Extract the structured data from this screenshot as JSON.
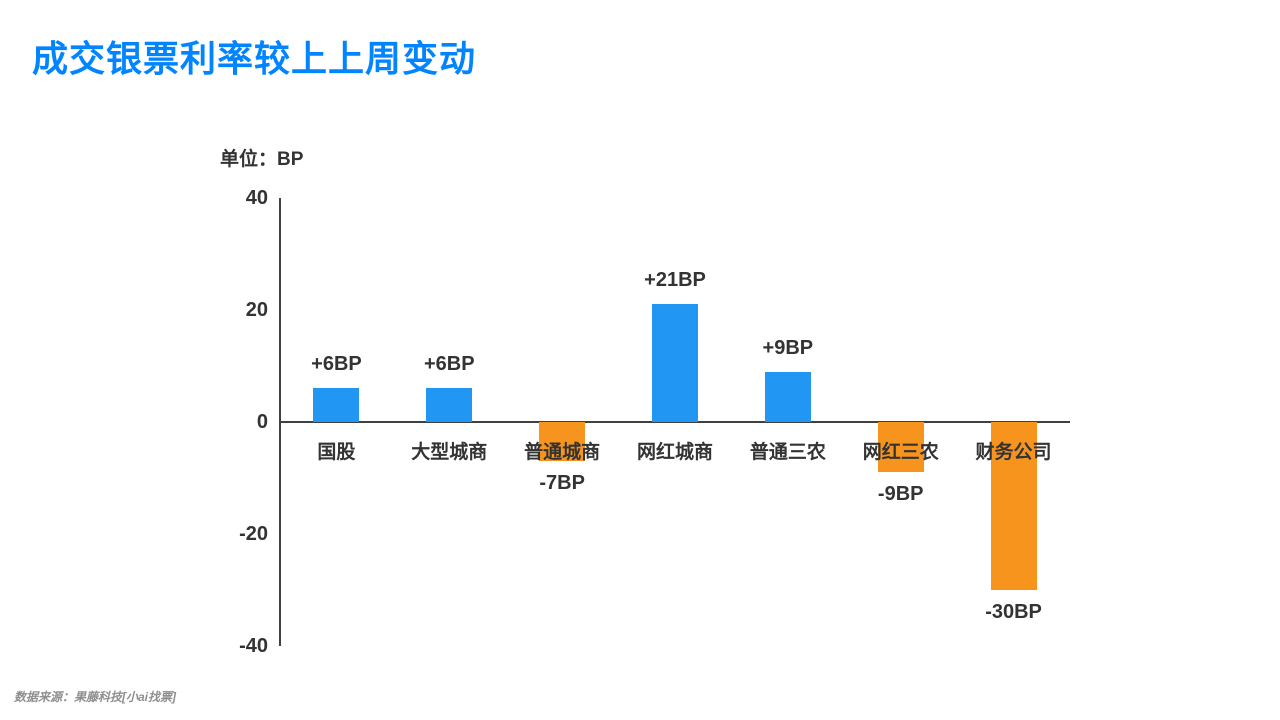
{
  "page": {
    "title": "成交银票利率较上上周变动",
    "source": "数据来源：果藤科技[小ai找票]"
  },
  "chart_data": {
    "type": "bar",
    "title": "成交银票利率较上上周变动",
    "unit_label": "单位：BP",
    "categories": [
      "国股",
      "大型城商",
      "普通城商",
      "网红城商",
      "普通三农",
      "网红三农",
      "财务公司"
    ],
    "values": [
      6,
      6,
      -7,
      21,
      9,
      -9,
      -30
    ],
    "data_labels": [
      "+6BP",
      "+6BP",
      "-7BP",
      "+21BP",
      "+9BP",
      "-9BP",
      "-30BP"
    ],
    "ylabel": "BP",
    "ylim": [
      -40,
      40
    ],
    "yticks": [
      40,
      20,
      0,
      -20,
      -40
    ],
    "grid": false,
    "legend": "none",
    "colors": {
      "positive_bar": "#2196f3",
      "negative_bar": "#f7941e",
      "title": "#0084ff",
      "axis": "#404040",
      "text": "#333333",
      "source": "#8f8f8f"
    }
  }
}
